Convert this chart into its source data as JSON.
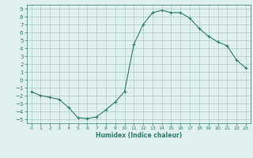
{
  "x": [
    0,
    1,
    2,
    3,
    4,
    5,
    6,
    7,
    8,
    9,
    10,
    11,
    12,
    13,
    14,
    15,
    16,
    17,
    18,
    19,
    20,
    21,
    22,
    23
  ],
  "y": [
    -1.5,
    -2.0,
    -2.2,
    -2.5,
    -3.5,
    -4.8,
    -4.9,
    -4.7,
    -3.8,
    -2.8,
    -1.5,
    4.5,
    7.0,
    8.5,
    8.8,
    8.5,
    8.5,
    7.8,
    6.5,
    5.5,
    4.8,
    4.3,
    2.5,
    1.5
  ],
  "xlim": [
    -0.5,
    23.5
  ],
  "ylim": [
    -5.5,
    9.5
  ],
  "xticks": [
    0,
    1,
    2,
    3,
    4,
    5,
    6,
    7,
    8,
    9,
    10,
    11,
    12,
    13,
    14,
    15,
    16,
    17,
    18,
    19,
    20,
    21,
    22,
    23
  ],
  "yticks": [
    -5,
    -4,
    -3,
    -2,
    -1,
    0,
    1,
    2,
    3,
    4,
    5,
    6,
    7,
    8,
    9
  ],
  "xlabel": "Humidex (Indice chaleur)",
  "line_color": "#2e7d6e",
  "bg_color": "#dff0ee",
  "grid_color": "#aaccc8",
  "marker": "+",
  "linewidth": 0.8,
  "markersize": 3
}
